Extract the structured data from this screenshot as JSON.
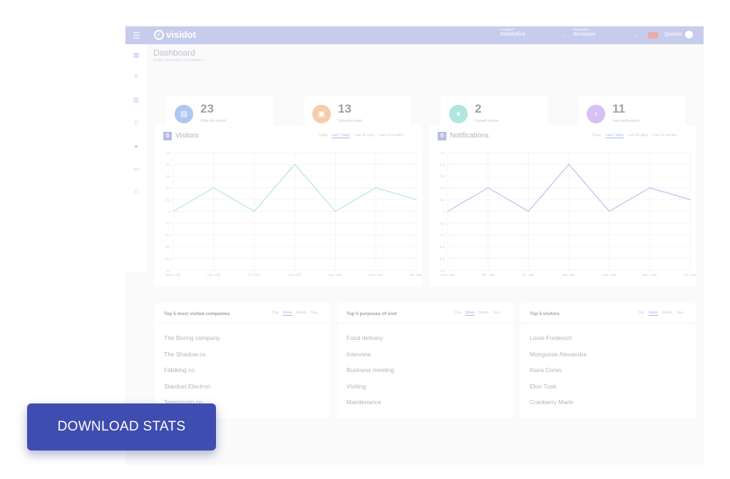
{
  "app": {
    "logo": "visidot",
    "location": {
      "caption": "Location",
      "value": "Rebelofficé"
    },
    "reception": {
      "caption": "Reception",
      "value": "Reception"
    },
    "user": "Quentin"
  },
  "page": {
    "title": "Dashboard",
    "subtitle": "Visitor information and statistics"
  },
  "stats": [
    {
      "value": "23",
      "label": "Visits this month",
      "color": "#6e97e8",
      "icon": "calendar-icon"
    },
    {
      "value": "13",
      "label": "Visits this week",
      "color": "#f0a468",
      "icon": "card-icon"
    },
    {
      "value": "2",
      "label": "Current visitors",
      "color": "#6fd3c2",
      "icon": "person-icon"
    },
    {
      "value": "11",
      "label": "Sent notifications",
      "color": "#b88ee8",
      "icon": "bell-icon"
    }
  ],
  "charts": {
    "visitors": {
      "badge": "0",
      "title": "Visitors"
    },
    "notifications": {
      "badge": "0",
      "title": "Notifications"
    },
    "tabs": [
      "Today",
      "Last 7 days",
      "Last 30 days",
      "Last 12 months"
    ]
  },
  "chart_data": [
    {
      "type": "line",
      "categories": [
        "Wed. 14th",
        "Thu. 15th",
        "Fri. 16th",
        "Sat. 19th",
        "Sun. 20th",
        "Mon. 21st",
        "Tue. 22nd"
      ],
      "series": [
        {
          "values": [
            0,
            0.4,
            0,
            0.8,
            0,
            0.4,
            0.2
          ]
        }
      ],
      "ylim": [
        -1.0,
        1.0
      ],
      "yticks": [
        "1.0",
        "0.8",
        "0.6",
        "0.4",
        "0.2",
        "0",
        "-0.2",
        "-0.4",
        "-0.6",
        "-0.8",
        "-1.0"
      ],
      "color": "#7fd6c6",
      "grid": true
    },
    {
      "type": "line",
      "categories": [
        "Wed. 14th",
        "Thu. 15th",
        "Fri. 16th",
        "Sat. 19th",
        "Sun. 20th",
        "Mon. 21st",
        "Tue. 22nd"
      ],
      "series": [
        {
          "values": [
            0,
            0.4,
            0,
            0.8,
            0,
            0.4,
            0.2
          ]
        }
      ],
      "ylim": [
        -1.0,
        1.0
      ],
      "yticks": [
        "1.0",
        "0.8",
        "0.6",
        "0.4",
        "0.2",
        "0",
        "-0.2",
        "-0.4",
        "-0.6",
        "-0.8",
        "-1.0"
      ],
      "color": "#9b8fe0",
      "grid": true
    }
  ],
  "lists": {
    "tabs": [
      "Day",
      "Week",
      "Month",
      "Year"
    ],
    "companies": {
      "title": "Top 5 most visited companies",
      "items": [
        "The Boring company",
        "The Shadow.co",
        "Fitbiking.co",
        "Stardust Electron",
        "Tempocorp.co"
      ]
    },
    "purposes": {
      "title": "Top 5 purposes of visit",
      "items": [
        "Food delivery",
        "Interview",
        "Business meeting",
        "Visiting",
        "Maintenance"
      ]
    },
    "visitors": {
      "title": "Top 5 visitors",
      "items": [
        "Louie Frederich",
        "Mongoose Alexandre",
        "Klara Corso",
        "Elon Tusk",
        "Cranberry Marie"
      ]
    }
  },
  "cta": {
    "label": "DOWNLOAD STATS",
    "color": "#3f4db0"
  }
}
